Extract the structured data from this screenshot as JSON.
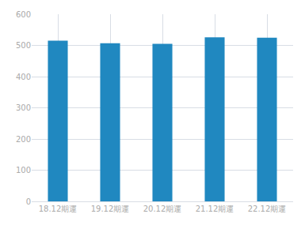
{
  "chart_data": {
    "type": "bar",
    "categories": [
      "18.12期運",
      "19.12期運",
      "20.12期運",
      "21.12期運",
      "22.12期運"
    ],
    "values": [
      515,
      507,
      505,
      526,
      525
    ],
    "color": "#2088c0",
    "ylim": [
      0,
      600
    ],
    "yticks": [
      0,
      100,
      200,
      300,
      400,
      500,
      600
    ],
    "grid": true
  }
}
